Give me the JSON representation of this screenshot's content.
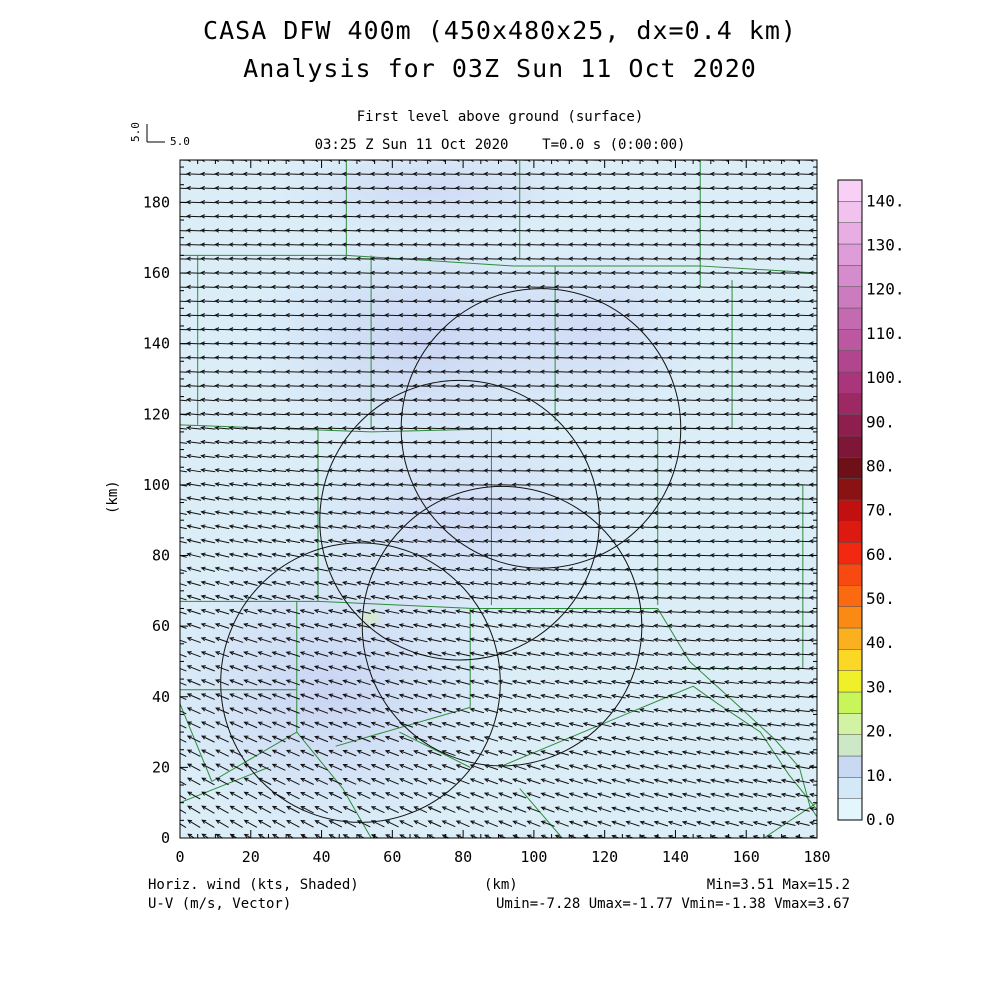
{
  "header": {
    "title_line1": "CASA DFW 400m (450x480x25, dx=0.4 km)",
    "title_line2": "Analysis for 03Z Sun 11 Oct 2020",
    "level_label": "First level above ground (surface)",
    "time_label": "03:25 Z Sun 11 Oct 2020    T=0.0 s (0:00:00)",
    "ref_vector_value_vertical": "5.0",
    "ref_vector_value_horizontal": "5.0"
  },
  "footer": {
    "left_line1": "Horiz. wind (kts, Shaded)",
    "left_line2": "U-V (m/s, Vector)",
    "center_label": "(km)",
    "right_line1": "Min=3.51 Max=15.2",
    "right_line2": "Umin=-7.28 Umax=-1.77 Vmin=-1.38 Vmax=3.67"
  },
  "chart_data": {
    "type": "heatmap",
    "title": "CASA DFW 400m (450x480x25, dx=0.4 km)",
    "subtitle": "Analysis for 03Z Sun 11 Oct 2020",
    "xlabel": "(km)",
    "ylabel": "(km)",
    "xlim": [
      0,
      180
    ],
    "ylim": [
      0,
      192
    ],
    "x_ticks": [
      0,
      20,
      40,
      60,
      80,
      100,
      120,
      140,
      160,
      180
    ],
    "y_ticks": [
      0,
      20,
      40,
      60,
      80,
      100,
      120,
      140,
      160,
      180
    ],
    "field_shaded": "Horiz. wind (kts)",
    "field_vector": "U-V (m/s)",
    "stats": {
      "min": 3.51,
      "max": 15.2,
      "umin": -7.28,
      "umax": -1.77,
      "vmin": -1.38,
      "vmax": 3.67
    },
    "colorbar": {
      "labels": [
        "0.0",
        "10.",
        "20.",
        "30.",
        "40.",
        "50.",
        "60.",
        "70.",
        "80.",
        "90.",
        "100.",
        "110.",
        "120.",
        "130.",
        "140."
      ],
      "values": [
        0,
        10,
        20,
        30,
        40,
        50,
        60,
        70,
        80,
        90,
        100,
        110,
        120,
        130,
        140
      ],
      "colors": [
        "#e2f6fb",
        "#d3e9f8",
        "#c9d8f3",
        "#cde8c6",
        "#d2f2a4",
        "#c8f55a",
        "#f0f02a",
        "#fbd825",
        "#fbb020",
        "#fb8a15",
        "#fb6a10",
        "#f84a10",
        "#f22810",
        "#dc1a10",
        "#c21010",
        "#8a1212",
        "#6e1018",
        "#7e1638",
        "#8e1e4e",
        "#9c2864",
        "#a9367a",
        "#b2468e",
        "#bb58a0",
        "#c46ab0",
        "#cc7cbe",
        "#d58ccc",
        "#de9cd8",
        "#e8aee4",
        "#f2c2ee",
        "#f8d0f6"
      ]
    },
    "wind_field": {
      "grid_spacing_km": 4,
      "background_u_ms": -6.0,
      "background_v_ms": 0.2,
      "southwest_u_ms": -5.0,
      "southwest_v_ms": 3.2
    },
    "radar_range_circles": [
      {
        "center_km": [
          102,
          116
        ],
        "radius_km": 39.5
      },
      {
        "center_km": [
          79,
          90
        ],
        "radius_km": 39.5
      },
      {
        "center_km": [
          91,
          60
        ],
        "radius_km": 39.5
      },
      {
        "center_km": [
          51,
          44
        ],
        "radius_km": 39.5
      }
    ],
    "county_boundaries": [
      [
        [
          47,
          192
        ],
        [
          47,
          164
        ]
      ],
      [
        [
          96,
          192
        ],
        [
          96,
          164
        ]
      ],
      [
        [
          147,
          192
        ],
        [
          147,
          156
        ]
      ],
      [
        [
          0,
          165
        ],
        [
          47,
          165
        ],
        [
          94,
          162
        ],
        [
          147,
          162
        ],
        [
          180,
          160
        ]
      ],
      [
        [
          5,
          165
        ],
        [
          5,
          117
        ]
      ],
      [
        [
          54,
          165
        ],
        [
          54,
          116
        ]
      ],
      [
        [
          106,
          162
        ],
        [
          106,
          118
        ]
      ],
      [
        [
          156,
          158
        ],
        [
          156,
          116
        ]
      ],
      [
        [
          0,
          117
        ],
        [
          54,
          115
        ],
        [
          94,
          116
        ],
        [
          133,
          116
        ],
        [
          156,
          116
        ]
      ],
      [
        [
          39,
          116
        ],
        [
          39,
          67
        ]
      ],
      [
        [
          88,
          116
        ],
        [
          88,
          66
        ]
      ],
      [
        [
          135,
          116
        ],
        [
          135,
          66
        ]
      ],
      [
        [
          156,
          100
        ],
        [
          176,
          100
        ],
        [
          176,
          48
        ],
        [
          142,
          48
        ]
      ],
      [
        [
          0,
          67
        ],
        [
          39,
          67
        ],
        [
          83,
          65
        ],
        [
          135,
          65
        ]
      ],
      [
        [
          33,
          67
        ],
        [
          33,
          30
        ]
      ],
      [
        [
          82,
          65
        ],
        [
          82,
          37
        ],
        [
          44,
          26
        ]
      ],
      [
        [
          0,
          42
        ],
        [
          33,
          42
        ]
      ],
      [
        [
          0,
          38
        ],
        [
          9,
          16
        ]
      ],
      [
        [
          9,
          16
        ],
        [
          33,
          30
        ]
      ],
      [
        [
          33,
          30
        ],
        [
          46,
          14
        ],
        [
          54,
          0
        ]
      ],
      [
        [
          0,
          10
        ],
        [
          25,
          20
        ]
      ],
      [
        [
          90,
          20
        ],
        [
          145,
          43
        ],
        [
          152,
          38
        ],
        [
          164,
          30
        ],
        [
          172,
          18
        ],
        [
          180,
          8
        ]
      ],
      [
        [
          135,
          65
        ],
        [
          144,
          50
        ],
        [
          155,
          40
        ],
        [
          168,
          28
        ],
        [
          175,
          20
        ],
        [
          178,
          9
        ],
        [
          180,
          6
        ]
      ],
      [
        [
          96,
          14
        ],
        [
          108,
          0
        ]
      ],
      [
        [
          165,
          0
        ],
        [
          180,
          10
        ]
      ],
      [
        [
          62,
          30
        ],
        [
          82,
          20
        ]
      ]
    ]
  }
}
